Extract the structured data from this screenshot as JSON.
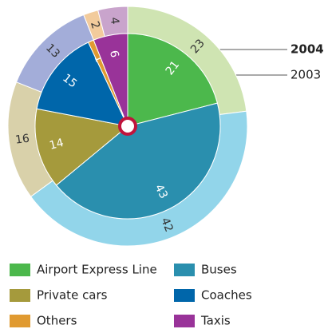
{
  "chart_data": {
    "type": "pie",
    "categories": [
      "Airport Express Line",
      "Buses",
      "Private cars",
      "Coaches",
      "Others",
      "Taxis"
    ],
    "series": [
      {
        "name": "2004",
        "values": [
          21,
          43,
          14,
          15,
          1,
          6
        ],
        "colors": [
          "#4cb84c",
          "#2a8fae",
          "#a59a3c",
          "#0066aa",
          "#e09a30",
          "#993399"
        ]
      },
      {
        "name": "2003",
        "values": [
          23,
          42,
          16,
          13,
          2,
          4
        ],
        "colors": [
          "#cfe4b2",
          "#92d5ea",
          "#d9d1aa",
          "#a3add9",
          "#f2cb9c",
          "#c9a4cc"
        ]
      }
    ]
  }
}
